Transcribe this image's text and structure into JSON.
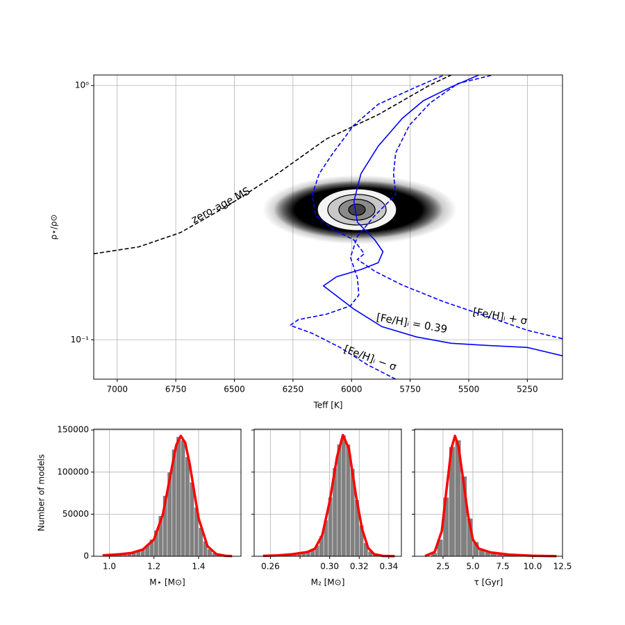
{
  "chart_data": [
    {
      "type": "line",
      "xlabel": "Teff [K]",
      "ylabel": "ρ⋆/ρ⊙",
      "xlim": [
        7100,
        5100
      ],
      "ylim": [
        0.07,
        1.1
      ],
      "ylog": true,
      "grid": true,
      "xticks": [
        7000,
        6750,
        6500,
        6250,
        6000,
        5750,
        5500,
        5250
      ],
      "yticks": [
        {
          "value": 0.1,
          "label": "10⁻¹"
        },
        {
          "value": 1,
          "label": "10⁰"
        }
      ],
      "series": [
        {
          "name": "zero-age MS",
          "color": "#000000",
          "dash": true,
          "x": [
            7100,
            6908,
            6730,
            6523,
            6316,
            6108,
            5886,
            5664,
            5575
          ],
          "values": [
            0.218,
            0.232,
            0.264,
            0.339,
            0.45,
            0.616,
            0.768,
            1.006,
            1.1
          ]
        },
        {
          "name": "[Fe/H]ᵢ = 0.39",
          "color": "#0000ff",
          "dash": false,
          "x": [
            5101,
            5250,
            5427,
            5575,
            5723,
            5871,
            5990,
            6120,
            6064,
            5960,
            5886,
            5866,
            5901,
            5975,
            5990,
            5960,
            5886,
            5783,
            5694,
            5575,
            5457
          ],
          "values": [
            0.0865,
            0.0933,
            0.0951,
            0.0969,
            0.1026,
            0.1127,
            0.132,
            0.163,
            0.177,
            0.189,
            0.201,
            0.222,
            0.247,
            0.29,
            0.35,
            0.45,
            0.578,
            0.744,
            0.871,
            0.987,
            1.1
          ]
        },
        {
          "name": "[Fe/H]ᵢ + σ",
          "color": "#0000ff",
          "dash": true,
          "x": [
            5101,
            5250,
            5427,
            5605,
            5783,
            5901,
            5975,
            5946,
            5990,
            6079,
            6153,
            6168,
            6138,
            6079,
            5990,
            5886,
            5723,
            5605
          ],
          "values": [
            0.101,
            0.109,
            0.124,
            0.141,
            0.164,
            0.186,
            0.207,
            0.218,
            0.247,
            0.272,
            0.308,
            0.372,
            0.45,
            0.543,
            0.698,
            0.844,
            0.987,
            1.1
          ]
        },
        {
          "name": "[Fe/H]ᵢ − σ",
          "color": "#0000ff",
          "dash": true,
          "x": [
            5812,
            5931,
            6049,
            6168,
            6262,
            6227,
            6108,
            6005,
            5969,
            5975,
            6005,
            5975,
            5901,
            5812,
            5821,
            5812,
            5753,
            5664,
            5546,
            5398
          ],
          "values": [
            0.07,
            0.0797,
            0.0933,
            0.106,
            0.114,
            0.12,
            0.126,
            0.136,
            0.15,
            0.175,
            0.211,
            0.255,
            0.308,
            0.372,
            0.45,
            0.543,
            0.698,
            0.855,
            1.019,
            1.1
          ]
        }
      ]
    },
    {
      "type": "histogram",
      "xlabel": "M⋆ [M⊙]",
      "ylabel": "Number of models",
      "color": "#808080",
      "grid": true,
      "xlim": [
        0.93,
        1.59
      ],
      "ylim": [
        0,
        151000
      ],
      "xticks": [
        {
          "value": 1,
          "label": "1.0"
        },
        1.2,
        1.4
      ],
      "yticks": [
        0,
        50000,
        100000,
        150000
      ],
      "bins": [
        0.96,
        0.98,
        1.0,
        1.02,
        1.04,
        1.06,
        1.08,
        1.1,
        1.12,
        1.14,
        1.16,
        1.18,
        1.2,
        1.22,
        1.24,
        1.26,
        1.28,
        1.3,
        1.32,
        1.34,
        1.36,
        1.38,
        1.4,
        1.42,
        1.44,
        1.46,
        1.48,
        1.5,
        1.52,
        1.54,
        1.56
      ],
      "counts": [
        300,
        500,
        800,
        1100,
        1500,
        2000,
        2800,
        4000,
        5800,
        8500,
        13000,
        20000,
        31000,
        48000,
        72000,
        100000,
        127000,
        142000,
        138000,
        118000,
        88000,
        58000,
        34000,
        18000,
        8500,
        3800,
        1600,
        700,
        300,
        100
      ],
      "curve": {
        "color": "#ff0000",
        "x": [
          0.97,
          1.05,
          1.1,
          1.15,
          1.2,
          1.24,
          1.28,
          1.3,
          1.32,
          1.34,
          1.36,
          1.4,
          1.44,
          1.48,
          1.52,
          1.55
        ],
        "values": [
          1000,
          2500,
          4000,
          8000,
          20000,
          50000,
          105000,
          132000,
          143000,
          135000,
          110000,
          45000,
          12000,
          2500,
          500,
          200
        ]
      }
    },
    {
      "type": "histogram",
      "xlabel": "M₂ [M⊙]",
      "color": "#808080",
      "grid": true,
      "sharey": true,
      "xlim": [
        0.249,
        0.3485
      ],
      "ylim": [
        0,
        151000
      ],
      "xticks": [
        0.26,
        {
          "value": 0.28,
          "label": null
        },
        {
          "value": 0.3,
          "label": "0.30"
        },
        0.32,
        0.34
      ],
      "bins": [
        0.254,
        0.257,
        0.26,
        0.263,
        0.266,
        0.269,
        0.272,
        0.275,
        0.278,
        0.281,
        0.284,
        0.287,
        0.29,
        0.293,
        0.296,
        0.299,
        0.302,
        0.305,
        0.308,
        0.311,
        0.314,
        0.317,
        0.32,
        0.323,
        0.326,
        0.329,
        0.332,
        0.335,
        0.338,
        0.341,
        0.344
      ],
      "counts": [
        500,
        600,
        800,
        1000,
        1300,
        1700,
        2200,
        2800,
        3500,
        4300,
        5500,
        7900,
        13000,
        24000,
        43000,
        70000,
        105000,
        133000,
        144000,
        133000,
        104000,
        67000,
        37000,
        16000,
        5800,
        1800,
        500,
        150,
        50,
        20
      ],
      "curve": {
        "color": "#ff0000",
        "x": [
          0.255,
          0.265,
          0.275,
          0.285,
          0.29,
          0.295,
          0.3,
          0.305,
          0.309,
          0.313,
          0.318,
          0.322,
          0.326,
          0.33,
          0.336,
          0.344
        ],
        "values": [
          500,
          1000,
          2500,
          5000,
          9000,
          25000,
          65000,
          118000,
          144000,
          128000,
          70000,
          32000,
          10000,
          2500,
          400,
          100
        ]
      }
    },
    {
      "type": "histogram",
      "xlabel": "τ [Gyr]",
      "color": "#808080",
      "grid": true,
      "sharey": true,
      "xlim": [
        0.12,
        12.5
      ],
      "ylim": [
        0,
        151000
      ],
      "xticks": [
        2.5,
        {
          "value": 5,
          "label": "5.0"
        },
        7.5,
        {
          "value": 10,
          "label": "10.0"
        },
        12.5
      ],
      "bins": [
        1,
        1.5,
        2,
        2.5,
        3,
        3.5,
        4,
        4.5,
        5,
        5.5,
        6,
        6.5,
        7,
        7.5,
        8,
        8.5,
        9,
        9.5,
        10,
        10.5,
        11,
        11.5,
        12
      ],
      "counts": [
        500,
        4000,
        20000,
        70000,
        130000,
        138000,
        95000,
        45000,
        17000,
        8000,
        5000,
        3500,
        2500,
        1800,
        1300,
        900,
        600,
        400,
        300,
        200,
        100,
        50
      ],
      "curve": {
        "color": "#ff0000",
        "x": [
          1,
          1.8,
          2.4,
          2.8,
          3.2,
          3.5,
          3.8,
          4.2,
          4.6,
          5,
          5.5,
          6.5,
          8,
          10,
          12
        ],
        "values": [
          300,
          5000,
          30000,
          80000,
          128000,
          143000,
          130000,
          90000,
          48000,
          20000,
          9000,
          4500,
          2000,
          600,
          100
        ]
      }
    }
  ]
}
